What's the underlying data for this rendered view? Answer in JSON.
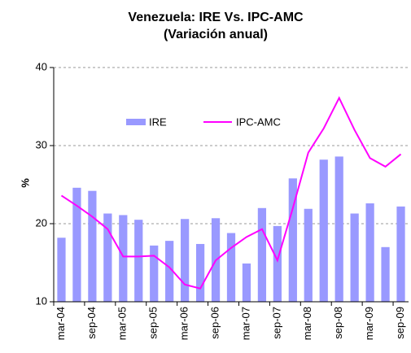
{
  "chart_data": {
    "type": "bar-line",
    "title": "Venezuela: IRE Vs. IPC-AMC",
    "subtitle": "(Variación anual)",
    "y_label": "%",
    "categories": [
      "mar-04",
      null,
      "sep-04",
      null,
      "mar-05",
      null,
      "sep-05",
      null,
      "mar-06",
      null,
      "sep-06",
      null,
      "mar-07",
      null,
      "sep-07",
      null,
      "mar-08",
      null,
      "sep-08",
      null,
      "mar-09",
      null,
      "sep-09"
    ],
    "series": [
      {
        "name": "IRE",
        "kind": "bar",
        "color": "#9999ff",
        "values": [
          18.2,
          24.6,
          24.2,
          21.3,
          21.1,
          20.5,
          17.2,
          17.8,
          20.6,
          17.4,
          20.7,
          18.8,
          14.9,
          22.0,
          19.7,
          25.8,
          21.9,
          28.2,
          28.6,
          21.3,
          22.6,
          17.0,
          22.2
        ]
      },
      {
        "name": "IPC-AMC",
        "kind": "line",
        "color": "#ff00ff",
        "values": [
          23.6,
          22.3,
          20.9,
          19.3,
          15.8,
          15.8,
          15.9,
          14.4,
          12.2,
          11.7,
          15.3,
          16.9,
          18.3,
          19.3,
          15.3,
          22.0,
          29.1,
          32.2,
          36.1,
          32.0,
          28.4,
          27.3,
          28.9
        ]
      }
    ],
    "ylim": [
      10,
      40
    ],
    "yticks": [
      10,
      20,
      30,
      40
    ],
    "grid": true
  }
}
